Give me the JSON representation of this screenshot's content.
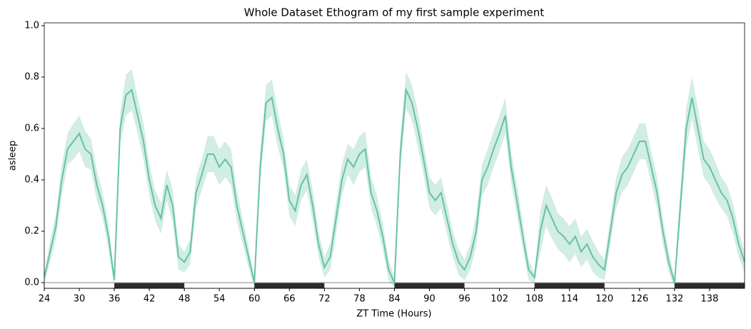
{
  "chart_data": {
    "type": "line",
    "title": "Whole Dataset Ethogram of my first sample experiment",
    "xlabel": "ZT Time (Hours)",
    "ylabel": "asleep",
    "x": [
      24,
      25,
      26,
      27,
      28,
      29,
      30,
      31,
      32,
      33,
      34,
      35,
      36,
      37,
      38,
      39,
      40,
      41,
      42,
      43,
      44,
      45,
      46,
      47,
      48,
      49,
      50,
      51,
      52,
      53,
      54,
      55,
      56,
      57,
      58,
      59,
      60,
      61,
      62,
      63,
      64,
      65,
      66,
      67,
      68,
      69,
      70,
      71,
      72,
      73,
      74,
      75,
      76,
      77,
      78,
      79,
      80,
      81,
      82,
      83,
      84,
      85,
      86,
      87,
      88,
      89,
      90,
      91,
      92,
      93,
      94,
      95,
      96,
      97,
      98,
      99,
      100,
      101,
      102,
      103,
      104,
      105,
      106,
      107,
      108,
      109,
      110,
      111,
      112,
      113,
      114,
      115,
      116,
      117,
      118,
      119,
      120,
      121,
      122,
      123,
      124,
      125,
      126,
      127,
      128,
      129,
      130,
      131,
      132,
      133,
      134,
      135,
      136,
      137,
      138,
      139,
      140,
      141,
      142,
      143,
      144
    ],
    "series": [
      {
        "name": "asleep",
        "color": "#66c2a5",
        "values": [
          0.02,
          0.12,
          0.22,
          0.4,
          0.52,
          0.55,
          0.58,
          0.52,
          0.5,
          0.38,
          0.3,
          0.18,
          0.01,
          0.6,
          0.73,
          0.75,
          0.65,
          0.55,
          0.4,
          0.3,
          0.25,
          0.38,
          0.3,
          0.1,
          0.08,
          0.12,
          0.35,
          0.42,
          0.5,
          0.5,
          0.45,
          0.48,
          0.45,
          0.3,
          0.2,
          0.1,
          0.0,
          0.45,
          0.7,
          0.72,
          0.6,
          0.5,
          0.32,
          0.28,
          0.38,
          0.42,
          0.3,
          0.15,
          0.06,
          0.1,
          0.25,
          0.4,
          0.48,
          0.45,
          0.5,
          0.52,
          0.35,
          0.28,
          0.18,
          0.05,
          0.0,
          0.5,
          0.75,
          0.7,
          0.6,
          0.48,
          0.35,
          0.32,
          0.35,
          0.25,
          0.15,
          0.08,
          0.05,
          0.1,
          0.2,
          0.4,
          0.45,
          0.52,
          0.58,
          0.65,
          0.45,
          0.32,
          0.18,
          0.05,
          0.02,
          0.2,
          0.3,
          0.25,
          0.2,
          0.18,
          0.15,
          0.18,
          0.12,
          0.15,
          0.1,
          0.07,
          0.05,
          0.2,
          0.35,
          0.42,
          0.45,
          0.5,
          0.55,
          0.55,
          0.45,
          0.35,
          0.2,
          0.08,
          0.0,
          0.3,
          0.6,
          0.72,
          0.6,
          0.48,
          0.45,
          0.4,
          0.35,
          0.32,
          0.25,
          0.15,
          0.08
        ],
        "errors": [
          0.02,
          0.04,
          0.05,
          0.06,
          0.06,
          0.07,
          0.07,
          0.07,
          0.06,
          0.06,
          0.05,
          0.05,
          0.02,
          0.06,
          0.08,
          0.08,
          0.07,
          0.07,
          0.06,
          0.06,
          0.06,
          0.06,
          0.06,
          0.05,
          0.04,
          0.05,
          0.06,
          0.06,
          0.07,
          0.07,
          0.07,
          0.07,
          0.07,
          0.06,
          0.05,
          0.04,
          0.02,
          0.06,
          0.07,
          0.07,
          0.07,
          0.06,
          0.06,
          0.06,
          0.06,
          0.06,
          0.06,
          0.05,
          0.04,
          0.05,
          0.06,
          0.06,
          0.06,
          0.07,
          0.07,
          0.07,
          0.06,
          0.06,
          0.05,
          0.04,
          0.02,
          0.06,
          0.07,
          0.07,
          0.07,
          0.06,
          0.06,
          0.06,
          0.06,
          0.06,
          0.05,
          0.05,
          0.04,
          0.05,
          0.06,
          0.06,
          0.07,
          0.07,
          0.07,
          0.07,
          0.06,
          0.06,
          0.05,
          0.04,
          0.02,
          0.08,
          0.08,
          0.08,
          0.07,
          0.07,
          0.07,
          0.07,
          0.06,
          0.06,
          0.06,
          0.05,
          0.04,
          0.05,
          0.06,
          0.07,
          0.07,
          0.07,
          0.07,
          0.07,
          0.06,
          0.06,
          0.05,
          0.04,
          0.02,
          0.06,
          0.08,
          0.08,
          0.08,
          0.07,
          0.07,
          0.07,
          0.06,
          0.06,
          0.06,
          0.05,
          0.04
        ]
      }
    ],
    "night": [
      {
        "start": 36,
        "end": 48
      },
      {
        "start": 60,
        "end": 72
      },
      {
        "start": 84,
        "end": 96
      },
      {
        "start": 108,
        "end": 120
      },
      {
        "start": 132,
        "end": 144
      }
    ],
    "xlim": [
      24,
      144
    ],
    "ylim": [
      -0.022,
      1.011
    ],
    "xticks": [
      24,
      30,
      36,
      42,
      48,
      54,
      60,
      66,
      72,
      78,
      84,
      90,
      96,
      102,
      108,
      114,
      120,
      126,
      132,
      138
    ],
    "yticks": [
      {
        "value": 0,
        "label": "0.0"
      },
      0.2,
      0.4,
      0.6,
      0.8,
      {
        "value": 1,
        "label": "1.0"
      }
    ]
  }
}
